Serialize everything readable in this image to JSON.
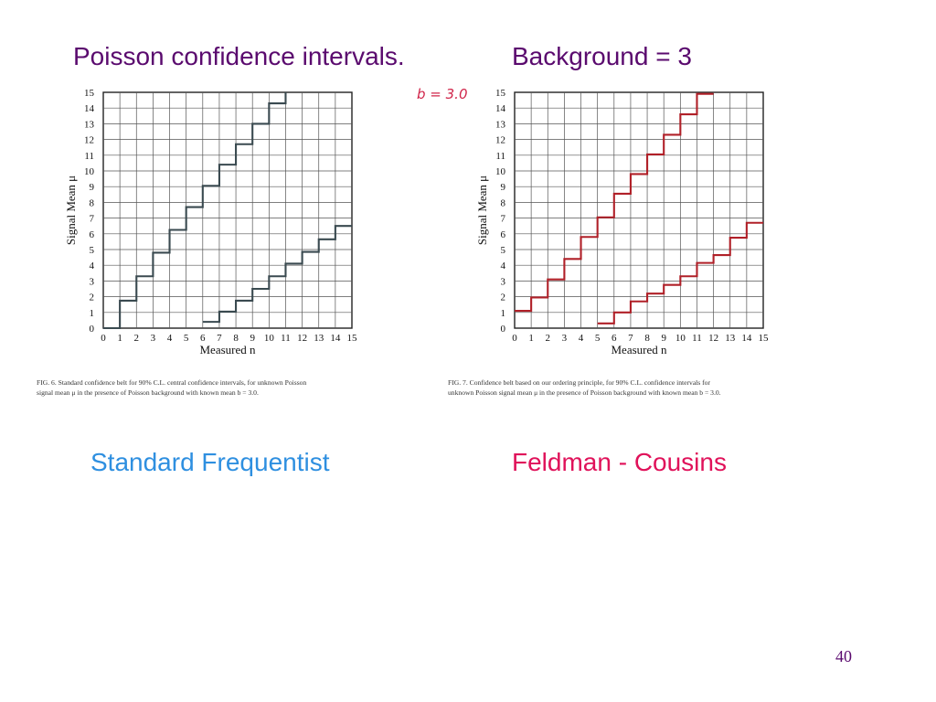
{
  "title": {
    "left": "Poisson confidence intervals.",
    "right": "Background = 3"
  },
  "annotation": "b = 3.0",
  "page_number": "40",
  "labels": {
    "left": "Standard Frequentist",
    "right": "Feldman - Cousins"
  },
  "colors": {
    "title": "#5a0a6e",
    "left_label": "#2e8fe0",
    "right_label": "#e0125a",
    "belt_left": "#3a4a50",
    "belt_right": "#b02028"
  },
  "chart_data": [
    {
      "type": "line",
      "xlabel": "Measured n",
      "ylabel": "Signal Mean μ",
      "xlim": [
        0,
        15
      ],
      "ylim": [
        0,
        15
      ],
      "grid": true,
      "caption": {
        "line1": "FIG. 6.  Standard confidence belt for 90% C.L. central confidence intervals, for unknown Poisson",
        "line2": "signal mean μ in the presence of Poisson background with known mean b = 3.0."
      },
      "series": [
        {
          "role": "upper",
          "x": [
            0,
            1,
            2,
            3,
            4,
            5,
            6,
            7,
            8,
            9,
            10,
            11
          ],
          "y": [
            0,
            1.75,
            3.3,
            4.8,
            6.25,
            7.7,
            9.05,
            10.4,
            11.7,
            13.0,
            14.3,
            15.0
          ]
        },
        {
          "role": "lower",
          "x": [
            6,
            7,
            8,
            9,
            10,
            11,
            12,
            13,
            14,
            15
          ],
          "y": [
            0.4,
            1.05,
            1.75,
            2.5,
            3.3,
            4.1,
            4.85,
            5.65,
            6.5,
            6.5
          ]
        }
      ]
    },
    {
      "type": "line",
      "xlabel": "Measured n",
      "ylabel": "Signal Mean μ",
      "xlim": [
        0,
        15
      ],
      "ylim": [
        0,
        15
      ],
      "grid": true,
      "caption": {
        "line1": "FIG. 7.  Confidence belt based on our ordering principle, for 90% C.L. confidence intervals for",
        "line2": "unknown Poisson signal mean μ in the presence of Poisson background with known mean b = 3.0."
      },
      "series": [
        {
          "role": "upper",
          "x": [
            0,
            1,
            2,
            3,
            4,
            5,
            6,
            7,
            8,
            9,
            10,
            11,
            12
          ],
          "y": [
            1.1,
            1.95,
            3.1,
            4.4,
            5.8,
            7.05,
            8.55,
            9.8,
            11.05,
            12.3,
            13.6,
            14.9,
            14.9
          ]
        },
        {
          "role": "lower",
          "x": [
            5,
            6,
            7,
            8,
            9,
            10,
            11,
            12,
            13,
            14,
            15
          ],
          "y": [
            0.3,
            1.0,
            1.7,
            2.2,
            2.75,
            3.3,
            4.15,
            4.65,
            5.75,
            6.7,
            6.7
          ]
        }
      ]
    }
  ]
}
